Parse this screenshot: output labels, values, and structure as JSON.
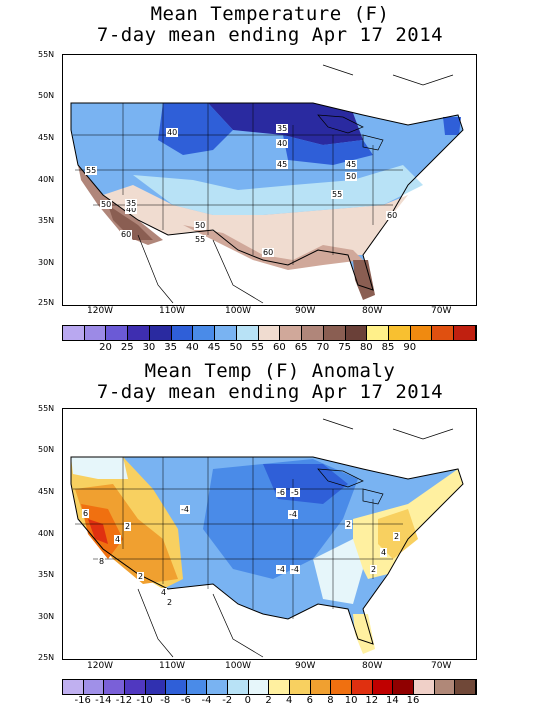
{
  "panels": [
    {
      "title_line1": "Mean Temperature (F)",
      "title_line2": "7-day mean ending Apr 17 2014",
      "lat_labels": [
        "55N",
        "50N",
        "45N",
        "40N",
        "35N",
        "30N",
        "25N"
      ],
      "lon_labels": [
        "120W",
        "110W",
        "100W",
        "90W",
        "80W",
        "70W"
      ],
      "contour_labels": [
        "40",
        "35",
        "40",
        "45",
        "55",
        "50",
        "55",
        "60",
        "60",
        "50",
        "55",
        "40",
        "35",
        "45",
        "50",
        "60"
      ],
      "colorbar": {
        "colors": [
          "#b9a8f0",
          "#9c8ae6",
          "#6b5ad6",
          "#3e2eb0",
          "#2a2aa0",
          "#2f5fd8",
          "#4a8be8",
          "#79b3f2",
          "#b8e2f6",
          "#f0dcd0",
          "#d0a89a",
          "#b0867a",
          "#8a5e52",
          "#6a4038",
          "#fff08a",
          "#f8c030",
          "#f08a10",
          "#e05010",
          "#c02010"
        ],
        "labels": [
          "20",
          "25",
          "30",
          "35",
          "40",
          "45",
          "50",
          "55",
          "60",
          "65",
          "70",
          "75",
          "80",
          "85",
          "90"
        ]
      }
    },
    {
      "title_line1": "Mean Temp (F) Anomaly",
      "title_line2": "7-day mean ending Apr 17 2014",
      "lat_labels": [
        "55N",
        "50N",
        "45N",
        "40N",
        "35N",
        "30N",
        "25N"
      ],
      "lon_labels": [
        "120W",
        "110W",
        "100W",
        "90W",
        "80W",
        "70W"
      ],
      "contour_labels": [
        "6",
        "4",
        "2",
        "8",
        "4",
        "2",
        "2",
        "-4",
        "-6",
        "-5",
        "-4",
        "-4",
        "-4",
        "2",
        "2",
        "4",
        "2"
      ],
      "colorbar": {
        "colors": [
          "#c0b0f0",
          "#a090e8",
          "#7a60d8",
          "#5038c0",
          "#3030b0",
          "#2f5fd8",
          "#4a8be8",
          "#79b3f2",
          "#b8e2f6",
          "#e6f6fa",
          "#fff0a0",
          "#f8d060",
          "#f0a030",
          "#f07010",
          "#e03010",
          "#c00000",
          "#900000",
          "#f0d0c8",
          "#b08878",
          "#704838"
        ],
        "labels": [
          "-16",
          "-14",
          "-12",
          "-10",
          "-8",
          "-6",
          "-4",
          "-2",
          "0",
          "2",
          "4",
          "6",
          "8",
          "10",
          "12",
          "14",
          "16"
        ]
      }
    }
  ]
}
